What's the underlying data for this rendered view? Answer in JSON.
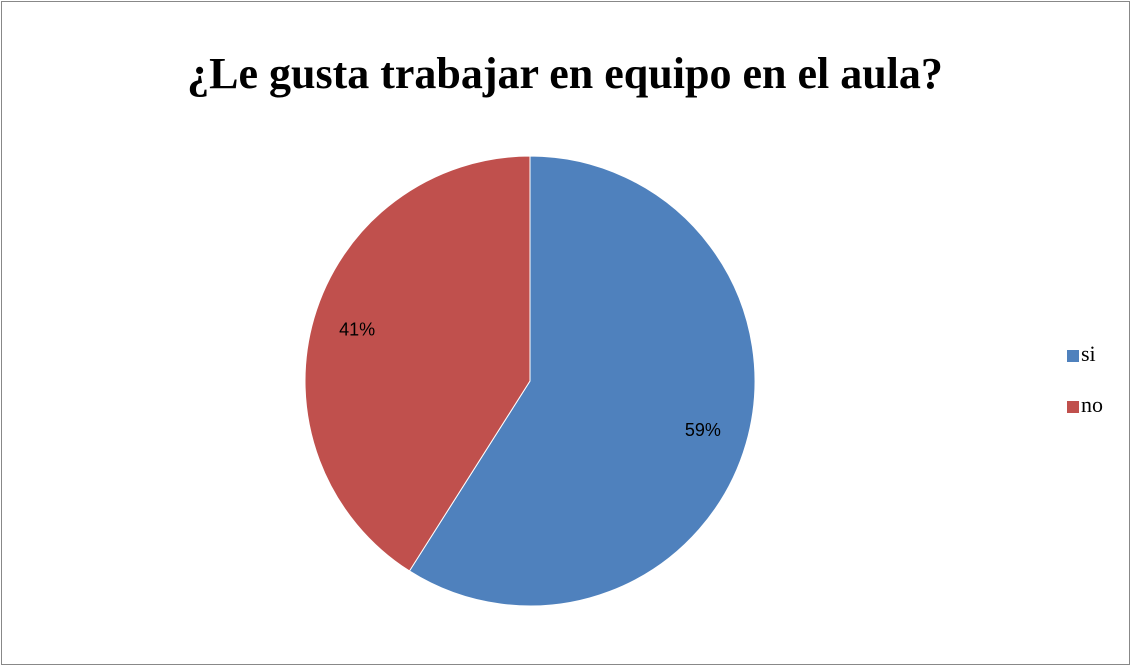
{
  "chart_data": {
    "type": "pie",
    "title": "¿Le gusta trabajar en equipo en el aula?",
    "categories": [
      "si",
      "no"
    ],
    "values": [
      59,
      41
    ],
    "value_labels": [
      "59%",
      "41%"
    ],
    "colors": [
      "#4f81bd",
      "#c0504d"
    ],
    "legend": "right"
  }
}
